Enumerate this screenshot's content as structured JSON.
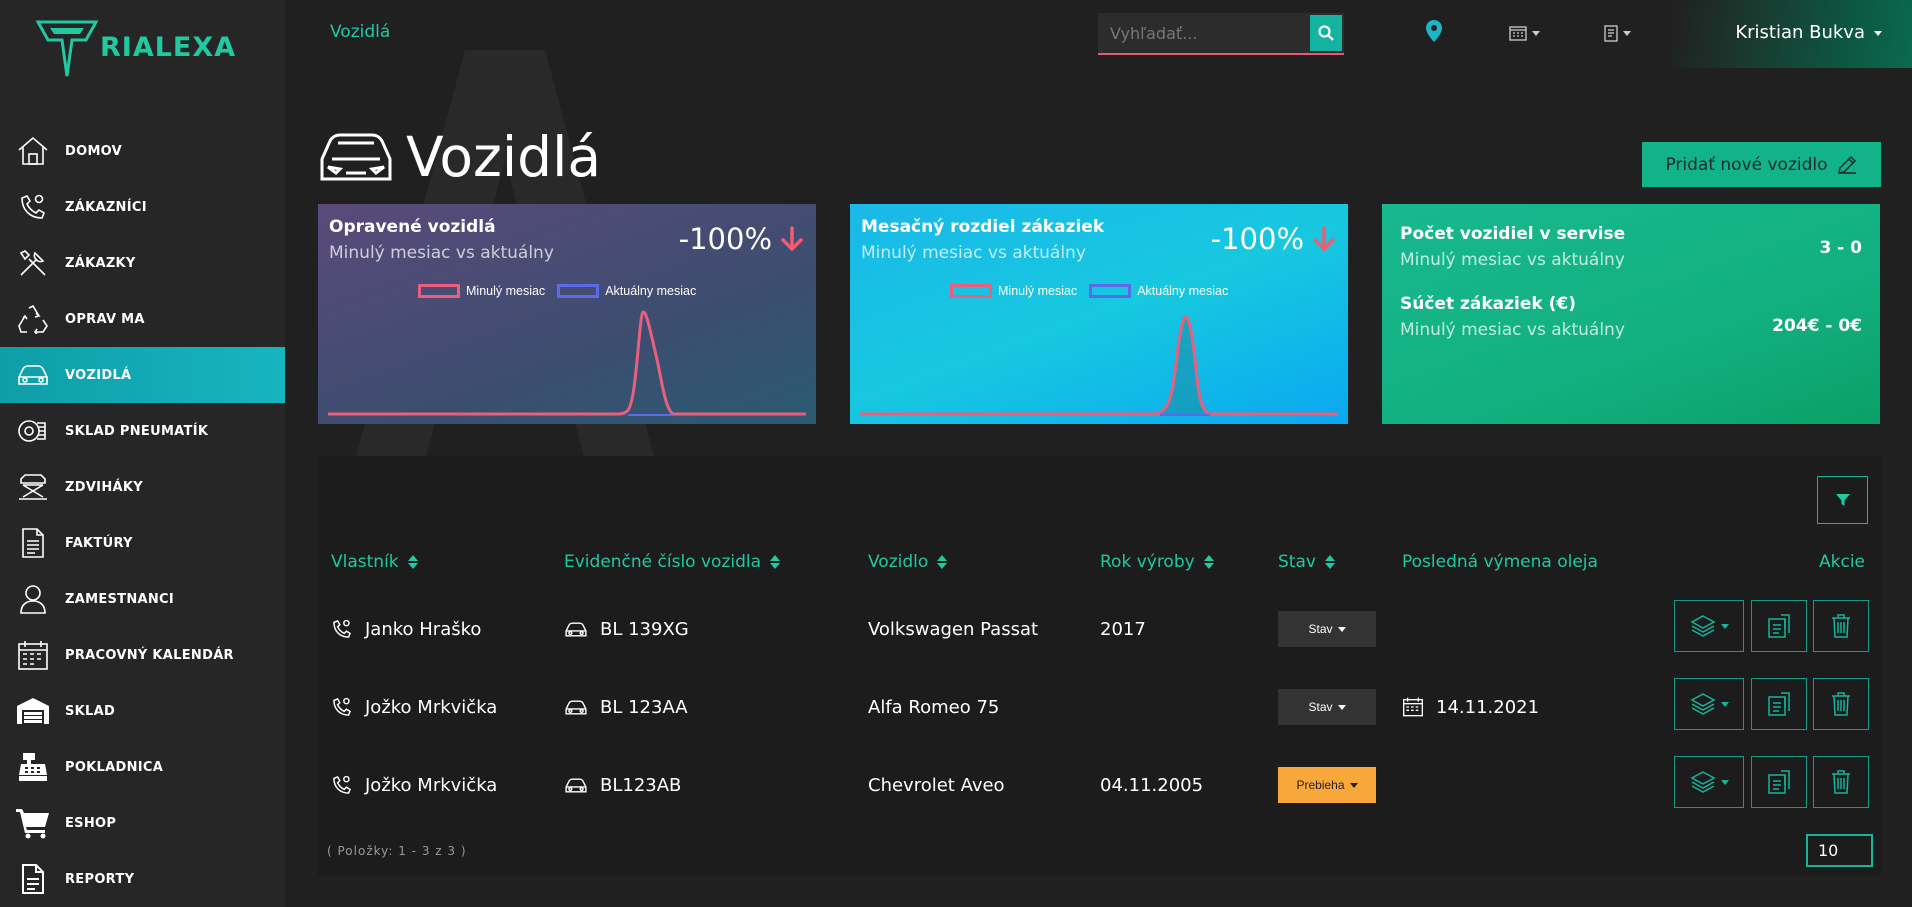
{
  "brand": {
    "logo_text": "RIALEXA",
    "accent": "#20c9a0",
    "active_nav": "#14aab3"
  },
  "topbar": {
    "title": "Vozidlá",
    "search_placeholder": "Vyhľadať...",
    "user_name": "Kristian Bukva"
  },
  "sidebar": {
    "items": [
      {
        "label": "DOMOV",
        "icon": "home-icon"
      },
      {
        "label": "ZÁKAZNÍCI",
        "icon": "phone-user-icon"
      },
      {
        "label": "ZÁKAZKY",
        "icon": "tools-icon"
      },
      {
        "label": "OPRAV MA",
        "icon": "recycle-icon"
      },
      {
        "label": "VOZIDLÁ",
        "icon": "car-icon",
        "active": true
      },
      {
        "label": "SKLAD PNEUMATÍK",
        "icon": "tire-icon"
      },
      {
        "label": "ZDVIHÁKY",
        "icon": "lift-icon"
      },
      {
        "label": "FAKTÚRY",
        "icon": "invoice-icon"
      },
      {
        "label": "ZAMESTNANCI",
        "icon": "employee-icon"
      },
      {
        "label": "PRACOVNÝ KALENDÁR",
        "icon": "calendar-icon"
      },
      {
        "label": "SKLAD",
        "icon": "warehouse-icon"
      },
      {
        "label": "POKLADNICA",
        "icon": "cash-register-icon"
      },
      {
        "label": "ESHOP",
        "icon": "cart-icon"
      },
      {
        "label": "REPORTY",
        "icon": "report-icon"
      }
    ]
  },
  "page": {
    "title": "Vozidlá",
    "add_button": "Pridať nové vozidlo"
  },
  "cards": {
    "repaired": {
      "title": "Opravené vozidlá",
      "subtitle": "Minulý mesiac vs aktuálny",
      "percent": "-100%",
      "legend_prev": "Minulý mesiac",
      "legend_curr": "Aktuálny mesiac"
    },
    "orders_diff": {
      "title": "Mesačný rozdiel zákaziek",
      "subtitle": "Minulý mesiac vs aktuálny",
      "percent": "-100%",
      "legend_prev": "Minulý mesiac",
      "legend_curr": "Aktuálny mesiac"
    },
    "stats": {
      "vehicles_title": "Počet vozidiel v servise",
      "vehicles_sub": "Minulý mesiac vs aktuálny",
      "vehicles_value": "3 - 0",
      "orders_title": "Súčet zákaziek (€)",
      "orders_sub": "Minulý mesiac vs aktuálny",
      "orders_value": "204€ - 0€"
    }
  },
  "table": {
    "headers": {
      "owner": "Vlastník",
      "plate": "Evidenčné číslo vozidla",
      "vehicle": "Vozidlo",
      "year": "Rok výroby",
      "status": "Stav",
      "oil": "Posledná výmena oleja",
      "actions": "Akcie"
    },
    "rows": [
      {
        "owner": "Janko Hraško",
        "plate": "BL 139XG",
        "vehicle": "Volkswagen Passat",
        "year": "2017",
        "status": "Stav",
        "oil": ""
      },
      {
        "owner": "Jožko Mrkvička",
        "plate": "BL 123AA",
        "vehicle": "Alfa Romeo 75",
        "year": "",
        "status": "Stav",
        "oil": "14.11.2021"
      },
      {
        "owner": "Jožko Mrkvička",
        "plate": "BL123AB",
        "vehicle": "Chevrolet Aveo",
        "year": "04.11.2005",
        "status": "Prebieha",
        "oil": ""
      }
    ],
    "footer": "( Položky: 1 - 3 z 3 )",
    "page_size": "10"
  },
  "chart_data": [
    {
      "type": "line",
      "legend": [
        "Minulý mesiac",
        "Aktuálny mesiac"
      ],
      "series": [
        {
          "name": "Minulý mesiac",
          "color": "#e8607e",
          "shape": "single-peak"
        },
        {
          "name": "Aktuálny mesiac",
          "color": "#5a6ae8",
          "shape": "flat-zero"
        }
      ]
    },
    {
      "type": "area",
      "legend": [
        "Minulý mesiac",
        "Aktuálny mesiac"
      ],
      "series": [
        {
          "name": "Minulý mesiac",
          "color": "#e8607e",
          "shape": "single-peak"
        },
        {
          "name": "Aktuálny mesiac",
          "color": "#5a6ae8",
          "shape": "flat-zero"
        }
      ]
    }
  ]
}
